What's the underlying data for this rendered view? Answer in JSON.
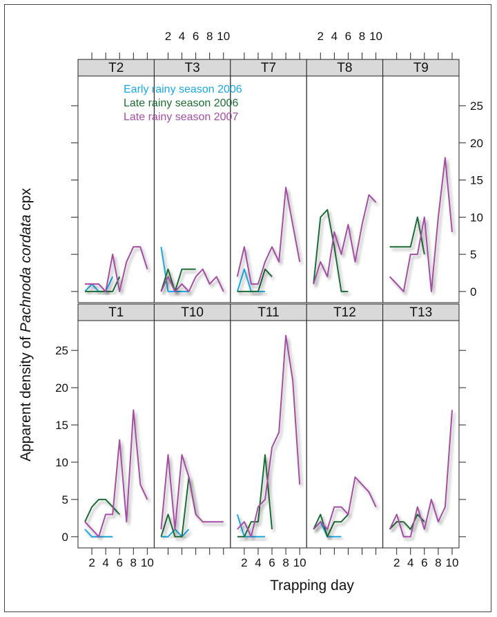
{
  "chart_data": {
    "type": "line",
    "xlabel": "Trapping day",
    "ylabel_parts": [
      "Apparent density of ",
      "Pachnoda cordata",
      " cpx"
    ],
    "x_ticks": [
      2,
      4,
      6,
      8,
      10
    ],
    "y_ticks": [
      0,
      5,
      10,
      15,
      20,
      25
    ],
    "xlim": [
      0,
      11
    ],
    "ylim": [
      -1.5,
      29
    ],
    "colors": {
      "series_a": "#1aa7e0",
      "series_b": "#1e6b35",
      "series_c": "#a34ea3",
      "strip": "#d9d9d9"
    },
    "legend": [
      {
        "name": "Early rainy season 2006",
        "color": "#1aa7e0"
      },
      {
        "name": "Late rainy season 2006",
        "color": "#1e6b35"
      },
      {
        "name": "Late rainy season 2007",
        "color": "#a34ea3"
      }
    ],
    "panels": [
      {
        "label": "T2",
        "series": [
          {
            "x": [
              1,
              2,
              3,
              4,
              5
            ],
            "y": [
              0,
              1,
              0,
              0,
              2
            ]
          },
          {
            "x": [
              1,
              2,
              3,
              4,
              5,
              6
            ],
            "y": [
              0,
              0,
              0,
              0,
              0,
              2
            ]
          },
          {
            "x": [
              1,
              2,
              3,
              4,
              5,
              6,
              7,
              8,
              9,
              10
            ],
            "y": [
              1,
              1,
              1,
              0,
              5,
              0,
              4,
              6,
              6,
              3
            ]
          }
        ]
      },
      {
        "label": "T3",
        "series": [
          {
            "x": [
              1,
              2,
              3,
              4,
              5
            ],
            "y": [
              6,
              0,
              0,
              0,
              0
            ]
          },
          {
            "x": [
              1,
              2,
              3,
              4,
              5,
              6
            ],
            "y": [
              0,
              3,
              0,
              3,
              3,
              3
            ]
          },
          {
            "x": [
              1,
              2,
              3,
              4,
              5,
              6,
              7,
              8,
              9,
              10
            ],
            "y": [
              0,
              2,
              0,
              1,
              0,
              2,
              3,
              1,
              2,
              0
            ]
          }
        ]
      },
      {
        "label": "T7",
        "series": [
          {
            "x": [
              1,
              2,
              3,
              4,
              5
            ],
            "y": [
              0,
              3,
              0,
              0,
              0
            ]
          },
          {
            "x": [
              1,
              2,
              3,
              4,
              5,
              6
            ],
            "y": [
              0,
              0,
              0,
              0,
              3,
              2
            ]
          },
          {
            "x": [
              1,
              2,
              3,
              4,
              5,
              6,
              7,
              8,
              9,
              10
            ],
            "y": [
              2,
              6,
              1,
              1,
              4,
              6,
              4,
              14,
              9,
              4
            ]
          }
        ]
      },
      {
        "label": "T8",
        "series": [
          {
            "x": [
              1,
              2,
              3,
              4,
              5
            ],
            "y": [
              0,
              0,
              0,
              0,
              0
            ]
          },
          {
            "x": [
              1,
              2,
              3,
              4,
              5,
              6
            ],
            "y": [
              1,
              10,
              11,
              6,
              0,
              0
            ]
          },
          {
            "x": [
              1,
              2,
              3,
              4,
              5,
              6,
              7,
              8,
              9,
              10
            ],
            "y": [
              1,
              4,
              2,
              8,
              5,
              9,
              4,
              9,
              13,
              12
            ]
          }
        ]
      },
      {
        "label": "T9",
        "series": [
          {
            "x": [
              1,
              2,
              3,
              4,
              5
            ],
            "y": [
              0,
              0,
              0,
              0,
              0
            ]
          },
          {
            "x": [
              1,
              2,
              3,
              4,
              5,
              6
            ],
            "y": [
              6,
              6,
              6,
              6,
              10,
              5
            ]
          },
          {
            "x": [
              1,
              2,
              3,
              4,
              5,
              6,
              7,
              8,
              9,
              10
            ],
            "y": [
              2,
              1,
              0,
              5,
              5,
              10,
              0,
              10,
              18,
              8
            ]
          }
        ]
      },
      {
        "label": "T1",
        "series": [
          {
            "x": [
              1,
              2,
              3,
              4,
              5
            ],
            "y": [
              1,
              0,
              0,
              0,
              0
            ]
          },
          {
            "x": [
              1,
              2,
              3,
              4,
              5,
              6
            ],
            "y": [
              2,
              4,
              5,
              5,
              4,
              3
            ]
          },
          {
            "x": [
              1,
              2,
              3,
              4,
              5,
              6,
              7,
              8,
              9,
              10
            ],
            "y": [
              2,
              1,
              0,
              3,
              3,
              13,
              2,
              17,
              7,
              5
            ]
          }
        ]
      },
      {
        "label": "T10",
        "series": [
          {
            "x": [
              1,
              2,
              3,
              4,
              5
            ],
            "y": [
              0,
              0,
              1,
              0,
              1
            ]
          },
          {
            "x": [
              1,
              2,
              3,
              4,
              5,
              6
            ],
            "y": [
              0,
              3,
              0,
              0,
              8,
              3
            ]
          },
          {
            "x": [
              1,
              2,
              3,
              4,
              5,
              6,
              7,
              8,
              9,
              10
            ],
            "y": [
              1,
              11,
              1,
              11,
              8,
              3,
              2,
              2,
              2,
              2
            ]
          }
        ]
      },
      {
        "label": "T11",
        "series": [
          {
            "x": [
              1,
              2,
              3,
              4,
              5
            ],
            "y": [
              3,
              0,
              0,
              0,
              0
            ]
          },
          {
            "x": [
              1,
              2,
              3,
              4,
              5,
              6
            ],
            "y": [
              0,
              0,
              2,
              2,
              11,
              1
            ]
          },
          {
            "x": [
              1,
              2,
              3,
              4,
              5,
              6,
              7,
              8,
              9,
              10
            ],
            "y": [
              1,
              2,
              0,
              4,
              5,
              12,
              14,
              27,
              21,
              7
            ]
          }
        ]
      },
      {
        "label": "T12",
        "series": [
          {
            "x": [
              1,
              2,
              3,
              4,
              5
            ],
            "y": [
              1,
              2,
              0,
              0,
              0
            ]
          },
          {
            "x": [
              1,
              2,
              3,
              4,
              5,
              6
            ],
            "y": [
              1,
              3,
              0,
              2,
              2,
              3
            ]
          },
          {
            "x": [
              1,
              2,
              3,
              4,
              5,
              6,
              7,
              8,
              9,
              10
            ],
            "y": [
              1,
              2,
              1,
              4,
              4,
              3,
              8,
              7,
              6,
              4
            ]
          }
        ]
      },
      {
        "label": "T13",
        "series": [
          {
            "x": [
              1,
              2,
              3,
              4,
              5
            ],
            "y": [
              0,
              0,
              0,
              0,
              0
            ]
          },
          {
            "x": [
              1,
              2,
              3,
              4,
              5,
              6
            ],
            "y": [
              1,
              2,
              2,
              1,
              3,
              2
            ]
          },
          {
            "x": [
              1,
              2,
              3,
              4,
              5,
              6,
              7,
              8,
              9,
              10
            ],
            "y": [
              1,
              3,
              0,
              0,
              4,
              1,
              5,
              2,
              4,
              17
            ]
          }
        ]
      }
    ]
  }
}
